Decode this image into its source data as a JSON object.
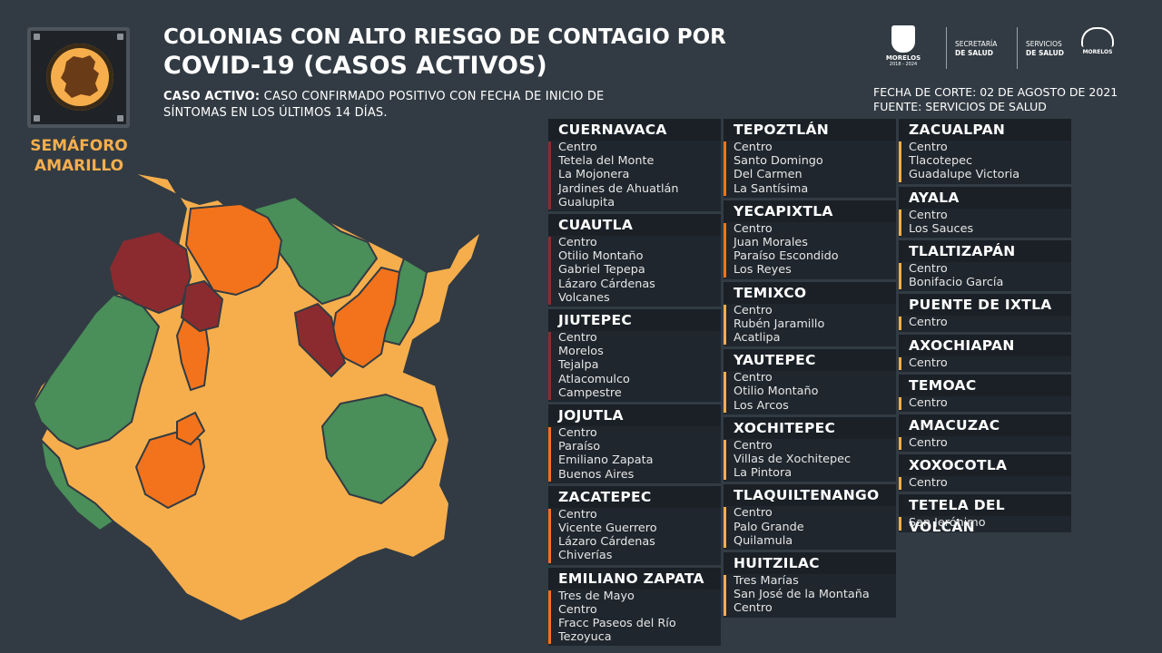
{
  "colors": {
    "background": "#323b43",
    "yellow": "#f6ae4c",
    "orange": "#f2731c",
    "dark_red": "#8c2b2f",
    "green": "#4a8e5a",
    "panel": "#1f262d"
  },
  "semaforo": {
    "label": "SEMÁFORO AMARILLO",
    "label_line1": "SEMÁFORO",
    "label_line2": "AMARILLO",
    "icon": "traffic-light-icon"
  },
  "title": {
    "line1": "COLONIAS CON ALTO RIESGO DE CONTAGIO POR",
    "line2": "COVID-19 (CASOS ACTIVOS)"
  },
  "definition": {
    "term": "CASO ACTIVO:",
    "text": " CASO CONFIRMADO POSITIVO CON FECHA DE INICIO DE SÍNTOMAS EN LOS ÚLTIMOS 14 DÍAS."
  },
  "logos": {
    "morelos_name": "MORELOS",
    "morelos_years": "2018 - 2024",
    "secretaria_line1": "SECRETARÍA",
    "secretaria_line2": "DE SALUD",
    "servicios_line1": "SERVICIOS",
    "servicios_line2": "DE SALUD",
    "morelos_right": "MORELOS"
  },
  "meta": {
    "fecha": "FECHA DE CORTE: 02 DE AGOSTO DE 2021",
    "fuente": "FUENTE: SERVICIOS DE SALUD"
  },
  "columns": [
    [
      {
        "name": "CUERNAVACA",
        "color": "#8c2b2f",
        "colonias": [
          "Centro",
          "Tetela del Monte",
          "La Mojonera",
          "Jardines de Ahuatlán",
          "Gualupita"
        ]
      },
      {
        "name": "CUAUTLA",
        "color": "#8c2b2f",
        "colonias": [
          "Centro",
          "Otilio Montaño",
          "Gabriel Tepepa",
          "Lázaro Cárdenas",
          "Volcanes"
        ]
      },
      {
        "name": "JIUTEPEC",
        "color": "#8c2b2f",
        "colonias": [
          "Centro",
          "Morelos",
          "Tejalpa",
          "Atlacomulco",
          "Campestre"
        ]
      },
      {
        "name": "JOJUTLA",
        "color": "#f2731c",
        "colonias": [
          "Centro",
          "Paraíso",
          "Emiliano Zapata",
          "Buenos Aires"
        ]
      },
      {
        "name": "ZACATEPEC",
        "color": "#f2731c",
        "colonias": [
          "Centro",
          "Vicente Guerrero",
          "Lázaro Cárdenas",
          "Chiverías"
        ]
      },
      {
        "name": "EMILIANO ZAPATA",
        "color": "#f2731c",
        "colonias": [
          "Tres de Mayo",
          "Centro",
          "Fracc Paseos del Río",
          "Tezoyuca"
        ]
      }
    ],
    [
      {
        "name": "TEPOZTLÁN",
        "color": "#f2731c",
        "colonias": [
          "Centro",
          "Santo Domingo",
          "Del Carmen",
          "La Santísima"
        ]
      },
      {
        "name": "YECAPIXTLA",
        "color": "#f2731c",
        "colonias": [
          "Centro",
          "Juan Morales",
          "Paraíso Escondido",
          "Los Reyes"
        ]
      },
      {
        "name": "TEMIXCO",
        "color": "#f6ae4c",
        "colonias": [
          "Centro",
          "Rubén Jaramillo",
          "Acatlipa"
        ]
      },
      {
        "name": "YAUTEPEC",
        "color": "#f6ae4c",
        "colonias": [
          "Centro",
          "Otilio Montaño",
          "Los Arcos"
        ]
      },
      {
        "name": "XOCHITEPEC",
        "color": "#f6ae4c",
        "colonias": [
          "Centro",
          "Villas de Xochitepec",
          "La Pintora"
        ]
      },
      {
        "name": "TLAQUILTENANGO",
        "color": "#f6ae4c",
        "colonias": [
          "Centro",
          "Palo Grande",
          "Quilamula"
        ]
      },
      {
        "name": "HUITZILAC",
        "color": "#f6ae4c",
        "colonias": [
          "Tres Marías",
          "San José de la Montaña",
          "Centro"
        ]
      }
    ],
    [
      {
        "name": "ZACUALPAN",
        "color": "#f6ae4c",
        "colonias": [
          "Centro",
          "Tlacotepec",
          "Guadalupe Victoria"
        ]
      },
      {
        "name": "AYALA",
        "color": "#f6ae4c",
        "colonias": [
          "Centro",
          "Los Sauces"
        ]
      },
      {
        "name": "TLALTIZAPÁN",
        "color": "#f6ae4c",
        "colonias": [
          "Centro",
          "Bonifacio García"
        ]
      },
      {
        "name": "PUENTE DE IXTLA",
        "color": "#f6ae4c",
        "colonias": [
          "Centro"
        ]
      },
      {
        "name": "AXOCHIAPAN",
        "color": "#f6ae4c",
        "colonias": [
          "Centro"
        ]
      },
      {
        "name": "TEMOAC",
        "color": "#f6ae4c",
        "colonias": [
          "Centro"
        ]
      },
      {
        "name": "AMACUZAC",
        "color": "#f6ae4c",
        "colonias": [
          "Centro"
        ]
      },
      {
        "name": "XOXOCOTLA",
        "color": "#f6ae4c",
        "colonias": [
          "Centro"
        ]
      },
      {
        "name": "TETELA DEL VOLCÁN",
        "color": "#f6ae4c",
        "colonias": [
          "San Jerónimo"
        ]
      }
    ]
  ]
}
